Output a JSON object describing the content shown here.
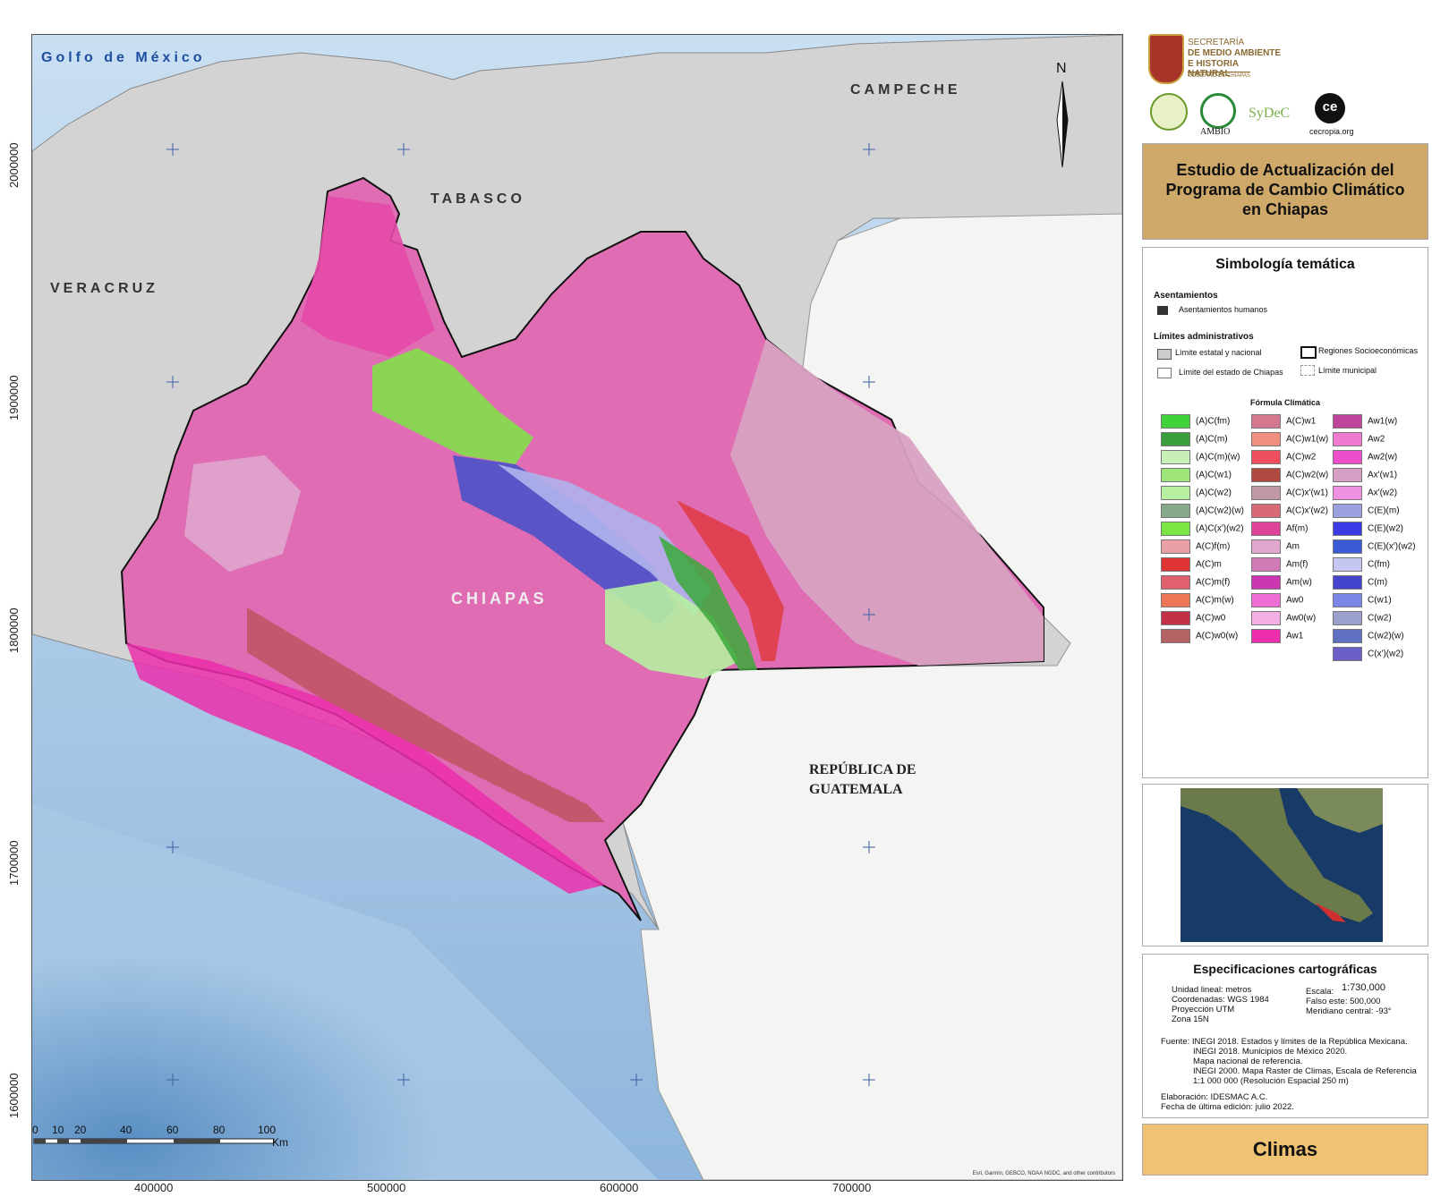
{
  "map": {
    "labels": {
      "gulf": "Golfo de México",
      "campeche": "CAMPECHE",
      "tabasco": "TABASCO",
      "veracruz": "VERACRUZ",
      "chiapas": "CHIAPAS",
      "guatemala_line1": "REPÚBLICA DE",
      "guatemala_line2": "GUATEMALA",
      "north": "N"
    },
    "y_ticks": [
      "2000000",
      "1900000",
      "1800000",
      "1700000",
      "1600000"
    ],
    "x_ticks": [
      "400000",
      "500000",
      "600000",
      "700000"
    ],
    "scale_ticks": [
      "0",
      "10",
      "20",
      "40",
      "60",
      "80",
      "100"
    ],
    "scale_unit": "Km",
    "attribution": "Esri, Garmin, GEBCO, NOAA NGDC, and other contributors"
  },
  "header": {
    "secretaria_line1": "SECRETARÍA",
    "secretaria_line2": "DE MEDIO AMBIENTE",
    "secretaria_line3": "E HISTORIA NATURAL",
    "gobierno": "GOBIERNO DE CHIAPAS",
    "logos": [
      "AMBIO",
      "SyDeC",
      "ce",
      "cecropia.org"
    ],
    "title_line1": "Estudio de Actualización del",
    "title_line2": "Programa de Cambio Climático",
    "title_line3": "en Chiapas"
  },
  "legend": {
    "title": "Simbología temática",
    "asentamientos": "Asentamientos",
    "asentamientos_item": "Asentamientos humanos",
    "limites": "Límites administrativos",
    "limite_estatal": "Límite estatal y nacional",
    "regiones": "Regiones Socioeconómicas",
    "limite_chiapas": "Límite del estado de Chiapas",
    "limite_municipal": "Límite municipal",
    "formula": "Fórmula Climática",
    "col1": [
      {
        "label": "(A)C(fm)",
        "color": "#3fd23a"
      },
      {
        "label": "(A)C(m)",
        "color": "#3a9e3a"
      },
      {
        "label": "(A)C(m)(w)",
        "color": "#c9efb8"
      },
      {
        "label": "(A)C(w1)",
        "color": "#9ee57a"
      },
      {
        "label": "(A)C(w2)",
        "color": "#b6f0a0"
      },
      {
        "label": "(A)C(w2)(w)",
        "color": "#86a98a"
      },
      {
        "label": "(A)C(x')(w2)",
        "color": "#7be643"
      },
      {
        "label": "A(C)f(m)",
        "color": "#e8a0a4"
      },
      {
        "label": "A(C)m",
        "color": "#e03434"
      },
      {
        "label": "A(C)m(f)",
        "color": "#e0606e"
      },
      {
        "label": "A(C)m(w)",
        "color": "#ec7656"
      },
      {
        "label": "A(C)w0",
        "color": "#c43046"
      },
      {
        "label": "A(C)w0(w)",
        "color": "#b46262"
      }
    ],
    "col2": [
      {
        "label": "A(C)w1",
        "color": "#d47890"
      },
      {
        "label": "A(C)w1(w)",
        "color": "#f08e80"
      },
      {
        "label": "A(C)w2",
        "color": "#ee4e5e"
      },
      {
        "label": "A(C)w2(w)",
        "color": "#b04a40"
      },
      {
        "label": "A(C)x'(w1)",
        "color": "#c098a8"
      },
      {
        "label": "A(C)x'(w2)",
        "color": "#d86a78"
      },
      {
        "label": "Af(m)",
        "color": "#e0449a"
      },
      {
        "label": "Am",
        "color": "#e0a6ce"
      },
      {
        "label": "Am(f)",
        "color": "#d07cb6"
      },
      {
        "label": "Am(w)",
        "color": "#cc36b0"
      },
      {
        "label": "Aw0",
        "color": "#ee6ed6"
      },
      {
        "label": "Aw0(w)",
        "color": "#f4b0e4"
      },
      {
        "label": "Aw1",
        "color": "#ec2eac"
      }
    ],
    "col3": [
      {
        "label": "Aw1(w)",
        "color": "#c0449c"
      },
      {
        "label": "Aw2",
        "color": "#f07ad0"
      },
      {
        "label": "Aw2(w)",
        "color": "#ec4ecc"
      },
      {
        "label": "Ax'(w1)",
        "color": "#d6a0c4"
      },
      {
        "label": "Ax'(w2)",
        "color": "#f090e0"
      },
      {
        "label": "C(E)(m)",
        "color": "#9aa0e0"
      },
      {
        "label": "C(E)(w2)",
        "color": "#3a3ae6"
      },
      {
        "label": "C(E)(x')(w2)",
        "color": "#3a5ad6"
      },
      {
        "label": "C(fm)",
        "color": "#c6c6f2"
      },
      {
        "label": "C(m)",
        "color": "#4444cc"
      },
      {
        "label": "C(w1)",
        "color": "#7a86e6"
      },
      {
        "label": "C(w2)",
        "color": "#9aa0cc"
      },
      {
        "label": "C(w2)(w)",
        "color": "#6070c0"
      },
      {
        "label": "C(x')(w2)",
        "color": "#6a60c8"
      }
    ]
  },
  "specs": {
    "title": "Especificaciones cartográficas",
    "left": [
      "Unidad lineal: metros",
      "Coordenadas: WGS 1984",
      "Proyección UTM",
      "Zona 15N"
    ],
    "escala_label": "Escala:",
    "escala_value": "1:730,000",
    "falso_este": "Falso este: 500,000",
    "meridiano": "Meridiano central: -93°",
    "fuente": [
      "Fuente: INEGI 2018. Estados y límites de la República Mexicana.",
      "INEGI 2018. Municipios de México 2020.",
      "Mapa nacional de referencia.",
      "INEGI 2000. Mapa Raster de Climas, Escala de Referencia",
      "1:1 000 000 (Resolución Espacial 250 m)"
    ],
    "elaboracion": "Elaboración: IDESMAC A.C.",
    "fecha": "Fecha de última edición: julio 2022."
  },
  "map_title": "Climas"
}
